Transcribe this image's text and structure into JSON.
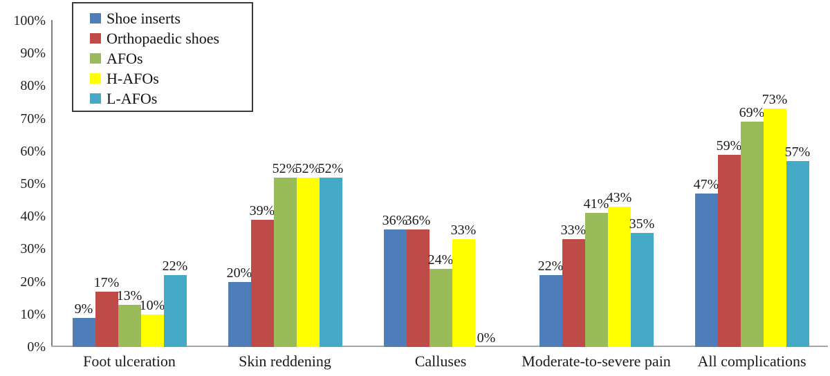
{
  "chart_data": {
    "type": "bar",
    "title": "",
    "xlabel": "",
    "ylabel": "",
    "categories": [
      "Foot ulceration",
      "Skin reddening",
      "Calluses",
      "Moderate-to-severe pain",
      "All complications"
    ],
    "series": [
      {
        "name": "Shoe inserts",
        "color": "#4E7DBA",
        "values": [
          9,
          20,
          36,
          22,
          47
        ]
      },
      {
        "name": "Orthopaedic shoes",
        "color": "#BE4B48",
        "values": [
          17,
          39,
          36,
          33,
          59
        ]
      },
      {
        "name": "AFOs",
        "color": "#9ABB59",
        "values": [
          13,
          52,
          24,
          41,
          69
        ]
      },
      {
        "name": "H-AFOs",
        "color": "#FFFF00",
        "values": [
          10,
          52,
          33,
          43,
          73
        ]
      },
      {
        "name": "L-AFOs",
        "color": "#45AAC6",
        "values": [
          22,
          52,
          0,
          35,
          57
        ]
      }
    ],
    "data_labels": true,
    "value_suffix": "%",
    "ylim": [
      0,
      100
    ],
    "y_tick_step": 10,
    "y_tick_labels": [
      "0%",
      "10%",
      "20%",
      "30%",
      "40%",
      "50%",
      "60%",
      "70%",
      "80%",
      "90%",
      "100%"
    ],
    "grid": false,
    "legend_position": "top-left",
    "axis_color": "#7f7f7f"
  }
}
